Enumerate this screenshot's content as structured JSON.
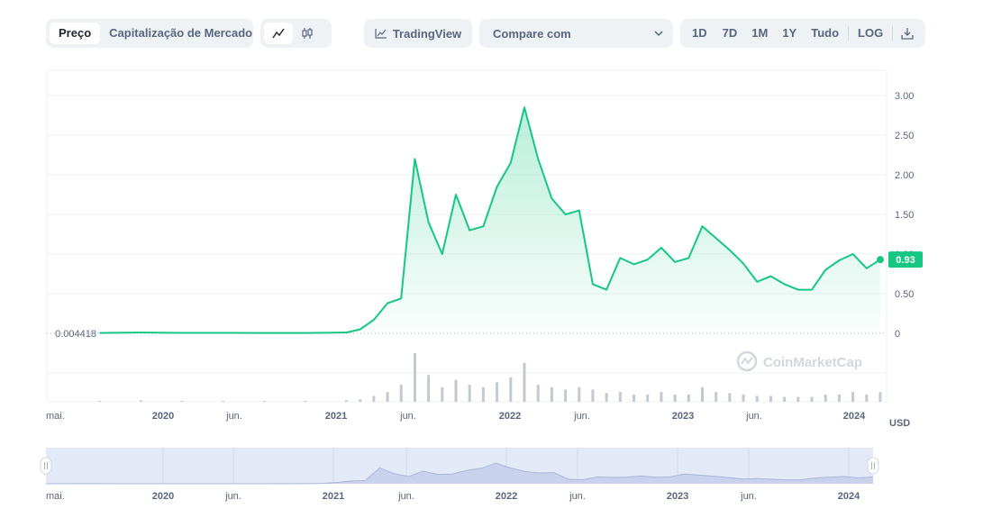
{
  "toolbar": {
    "tabs": [
      {
        "label": "Preço",
        "active": true
      },
      {
        "label": "Capitalização de Mercado",
        "active": false
      }
    ],
    "chart_type_icons": [
      "line-chart-icon",
      "candlestick-icon"
    ],
    "tradingview_label": "TradingView",
    "compare_label": "Compare com",
    "ranges": [
      "1D",
      "7D",
      "1M",
      "1Y",
      "Tudo"
    ],
    "log_label": "LOG",
    "download_icon": "download-icon"
  },
  "colors": {
    "line": "#16c784",
    "volume": "#c3c8d3",
    "navigator_fill": "#e4e9f7",
    "grid": "#eff2f5"
  },
  "watermark": "CoinMarketCap",
  "currency_label": "USD",
  "start_price_label": "0.004418",
  "current_price_label": "0.93",
  "chart_data": {
    "type": "area",
    "title": "",
    "ylabel": "",
    "ylim": [
      0,
      3.0
    ],
    "yticks": [
      "3.00",
      "2.50",
      "2.00",
      "1.50",
      "1.00",
      "0.50",
      "0"
    ],
    "xtick_labels": [
      {
        "label": "mai.",
        "year": false
      },
      {
        "label": "2020",
        "year": true
      },
      {
        "label": "jun.",
        "year": false
      },
      {
        "label": "2021",
        "year": true
      },
      {
        "label": "jun.",
        "year": false
      },
      {
        "label": "2022",
        "year": true
      },
      {
        "label": "jun.",
        "year": false
      },
      {
        "label": "2023",
        "year": true
      },
      {
        "label": "jun.",
        "year": false
      },
      {
        "label": "2024",
        "year": true
      }
    ],
    "x": [
      "2019-06",
      "2019-09",
      "2019-12",
      "2020-03",
      "2020-06",
      "2020-09",
      "2020-12",
      "2021-01",
      "2021-02",
      "2021-03",
      "2021-04",
      "2021-05",
      "2021-06",
      "2021-07",
      "2021-08",
      "2021-09",
      "2021-10",
      "2021-11",
      "2021-12",
      "2022-01",
      "2022-02",
      "2022-03",
      "2022-04",
      "2022-05",
      "2022-06",
      "2022-07",
      "2022-08",
      "2022-09",
      "2022-10",
      "2022-11",
      "2022-12",
      "2023-01",
      "2023-02",
      "2023-03",
      "2023-04",
      "2023-05",
      "2023-06",
      "2023-07",
      "2023-08",
      "2023-09",
      "2023-10",
      "2023-11",
      "2023-12",
      "2024-01",
      "2024-02",
      "2024-03"
    ],
    "values": [
      0.004,
      0.01,
      0.006,
      0.006,
      0.005,
      0.004,
      0.01,
      0.05,
      0.17,
      0.38,
      0.44,
      2.2,
      1.4,
      1.0,
      1.75,
      1.3,
      1.35,
      1.85,
      2.15,
      2.85,
      2.2,
      1.7,
      1.5,
      1.55,
      0.62,
      0.55,
      0.95,
      0.87,
      0.93,
      1.08,
      0.9,
      0.95,
      1.35,
      1.2,
      1.05,
      0.88,
      0.65,
      0.72,
      0.62,
      0.55,
      0.55,
      0.8,
      0.92,
      1.0,
      0.82,
      0.93
    ],
    "volume": [
      0.02,
      0.03,
      0.02,
      0.02,
      0.02,
      0.02,
      0.03,
      0.05,
      0.12,
      0.2,
      0.35,
      1.0,
      0.55,
      0.3,
      0.45,
      0.35,
      0.3,
      0.4,
      0.5,
      0.8,
      0.35,
      0.3,
      0.25,
      0.3,
      0.25,
      0.18,
      0.2,
      0.15,
      0.15,
      0.2,
      0.15,
      0.15,
      0.3,
      0.2,
      0.18,
      0.15,
      0.12,
      0.12,
      0.1,
      0.1,
      0.1,
      0.15,
      0.15,
      0.2,
      0.15,
      0.2
    ]
  }
}
